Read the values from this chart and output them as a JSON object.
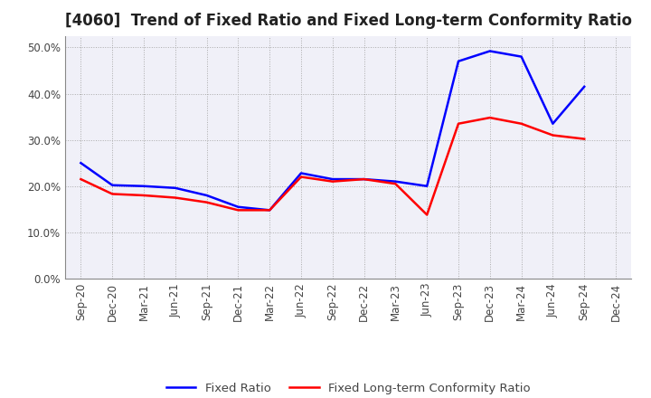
{
  "title": "[4060]  Trend of Fixed Ratio and Fixed Long-term Conformity Ratio",
  "x_labels": [
    "Sep-20",
    "Dec-20",
    "Mar-21",
    "Jun-21",
    "Sep-21",
    "Dec-21",
    "Mar-22",
    "Jun-22",
    "Sep-22",
    "Dec-22",
    "Mar-23",
    "Jun-23",
    "Sep-23",
    "Dec-23",
    "Mar-24",
    "Jun-24",
    "Sep-24",
    "Dec-24"
  ],
  "fixed_ratio": [
    0.25,
    0.202,
    0.2,
    0.196,
    0.18,
    0.155,
    0.148,
    0.228,
    0.215,
    0.215,
    0.21,
    0.2,
    0.47,
    0.492,
    0.48,
    0.335,
    0.415,
    null
  ],
  "fixed_lt_ratio": [
    0.215,
    0.183,
    0.18,
    0.175,
    0.165,
    0.148,
    0.148,
    0.22,
    0.21,
    0.215,
    0.205,
    0.138,
    0.335,
    0.348,
    0.335,
    0.31,
    0.302,
    null
  ],
  "ylim": [
    0.0,
    0.525
  ],
  "yticks": [
    0.0,
    0.1,
    0.2,
    0.3,
    0.4,
    0.5
  ],
  "fixed_ratio_color": "#0000FF",
  "fixed_lt_ratio_color": "#FF0000",
  "grid_color": "#AAAAAA",
  "plot_bg_color": "#F0F0F8",
  "fig_bg_color": "#FFFFFF",
  "legend_fixed": "Fixed Ratio",
  "legend_lt": "Fixed Long-term Conformity Ratio",
  "title_fontsize": 12,
  "axis_fontsize": 8.5,
  "legend_fontsize": 9.5
}
